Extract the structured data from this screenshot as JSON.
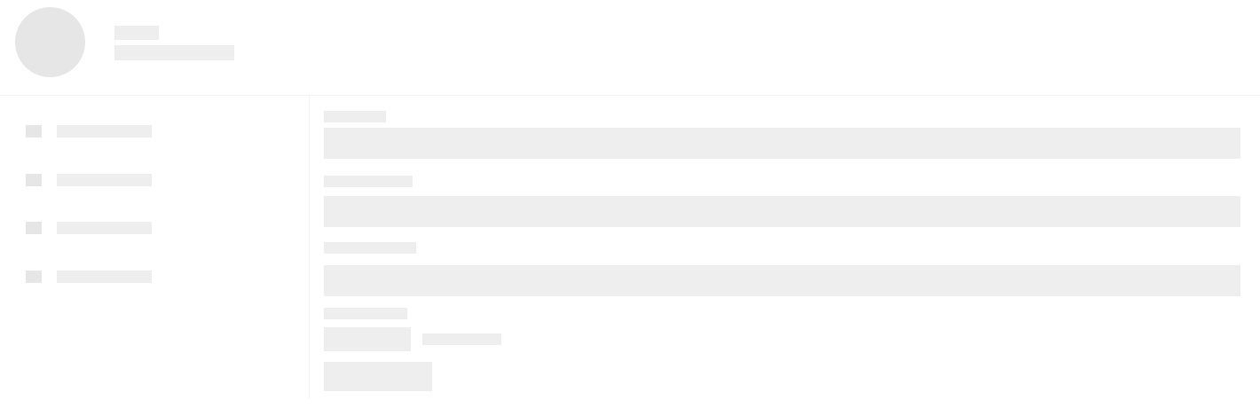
{
  "state": "loading-skeleton",
  "colors": {
    "background": "#ffffff",
    "placeholder": "#eeeeee",
    "avatar_placeholder": "#e6e6e6",
    "divider": "#f3f3f3"
  },
  "header": {
    "title": "",
    "subtitle": ""
  },
  "sidebar": {
    "items": [
      {
        "icon": "placeholder-icon",
        "label": ""
      },
      {
        "icon": "placeholder-icon",
        "label": ""
      },
      {
        "icon": "placeholder-icon",
        "label": ""
      },
      {
        "icon": "placeholder-icon",
        "label": ""
      }
    ]
  },
  "form": {
    "fields": [
      {
        "label": "",
        "value": ""
      },
      {
        "label": "",
        "value": ""
      },
      {
        "label": "",
        "value": ""
      }
    ],
    "option": {
      "label": "",
      "button": "",
      "caption": ""
    },
    "submit_label": ""
  }
}
